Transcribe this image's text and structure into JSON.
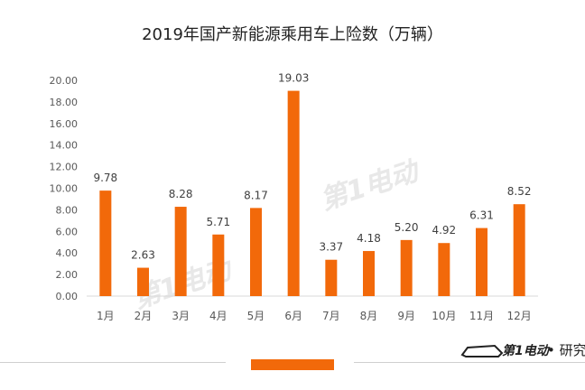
{
  "chart_data": {
    "type": "bar",
    "title": "2019年国产新能源乘用车上险数（万辆）",
    "categories": [
      "1月",
      "2月",
      "3月",
      "4月",
      "5月",
      "6月",
      "7月",
      "8月",
      "9月",
      "10月",
      "11月",
      "12月"
    ],
    "values": [
      9.78,
      2.63,
      8.28,
      5.71,
      8.17,
      19.03,
      3.37,
      4.18,
      5.2,
      4.92,
      6.31,
      8.52
    ],
    "data_labels": [
      "9.78",
      "2.63",
      "8.28",
      "5.71",
      "8.17",
      "19.03",
      "3.37",
      "4.18",
      "5.20",
      "4.92",
      "6.31",
      "8.52"
    ],
    "y_ticks": [
      "0.00",
      "2.00",
      "4.00",
      "6.00",
      "8.00",
      "10.00",
      "12.00",
      "14.00",
      "16.00",
      "18.00",
      "20.00"
    ],
    "ylim": [
      0,
      20
    ],
    "xlabel": "",
    "ylabel": "",
    "grid": false,
    "bar_color": "#f2690a"
  },
  "branding": {
    "logo_text": "第1电动",
    "suffix": "• 研究"
  }
}
